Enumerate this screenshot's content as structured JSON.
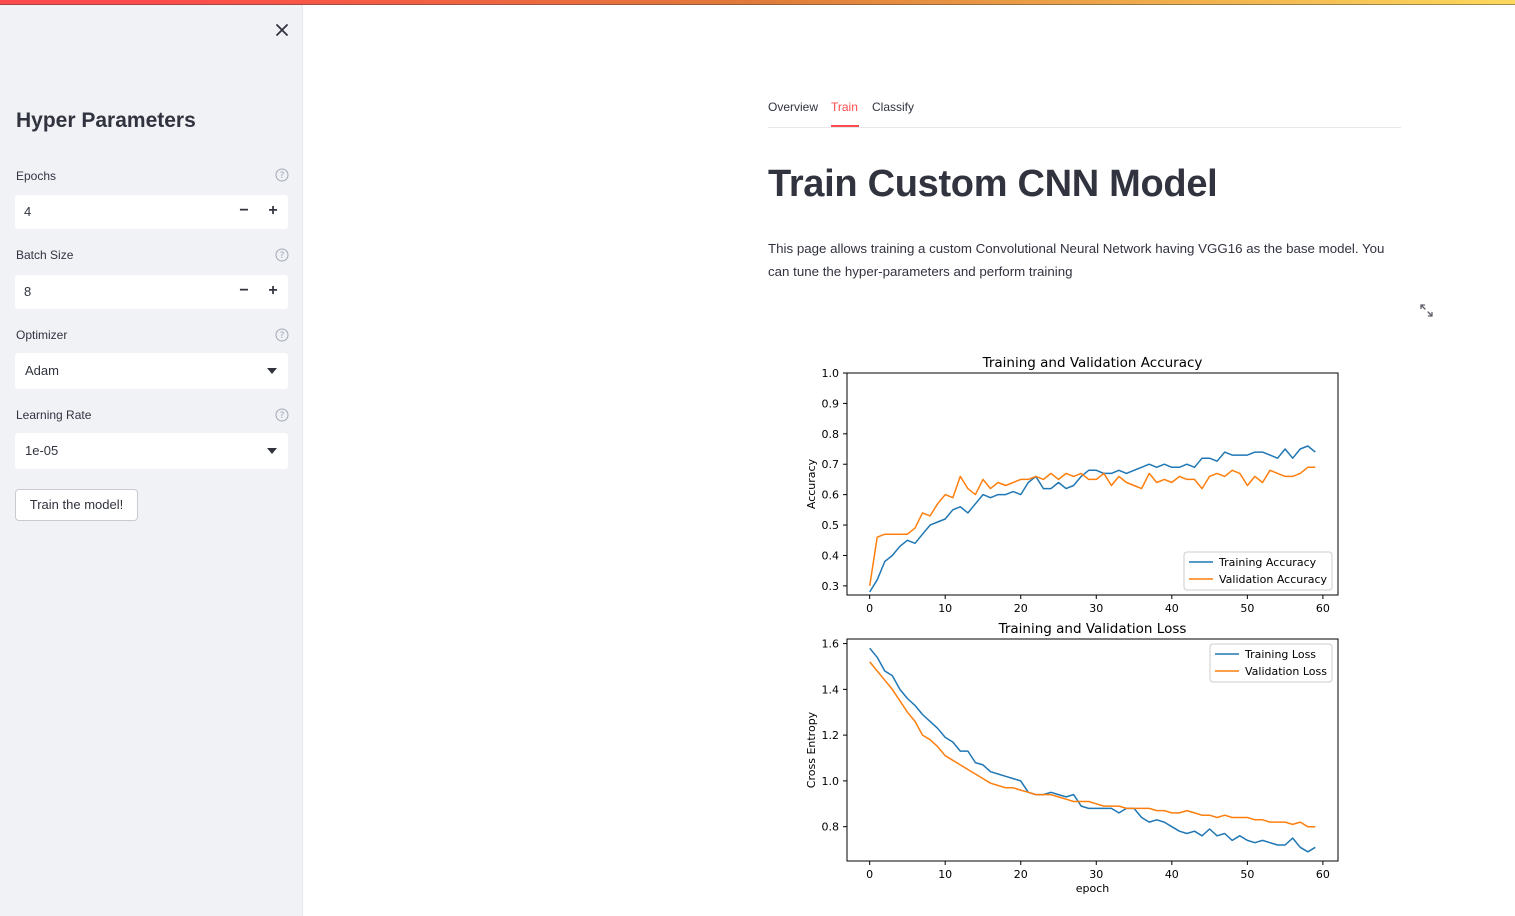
{
  "sidebar": {
    "title": "Hyper Parameters",
    "epochs": {
      "label": "Epochs",
      "value": "4",
      "minus": "−",
      "plus": "+"
    },
    "batch_size": {
      "label": "Batch Size",
      "value": "8",
      "minus": "−",
      "plus": "+"
    },
    "optimizer": {
      "label": "Optimizer",
      "value": "Adam"
    },
    "learning_rate": {
      "label": "Learning Rate",
      "value": "1e-05"
    },
    "train_button": "Train the model!"
  },
  "tabs": [
    {
      "label": "Overview",
      "active": false
    },
    {
      "label": "Train",
      "active": true
    },
    {
      "label": "Classify",
      "active": false
    }
  ],
  "main": {
    "title": "Train Custom CNN Model",
    "description": "This page allows training a custom Convolutional Neural Network having VGG16 as the base model. You can tune the hyper-parameters and perform training"
  },
  "colors": {
    "accent": "#ff4b4b",
    "series_blue": "#1f77b4",
    "series_orange": "#ff7f0e"
  },
  "chart_data": [
    {
      "type": "line",
      "title": "Training and Validation Accuracy",
      "xlabel": "",
      "ylabel": "Accuracy",
      "xlim": [
        -3,
        62
      ],
      "ylim": [
        0.27,
        1.0
      ],
      "xticks": [
        "0",
        "10",
        "20",
        "30",
        "40",
        "50",
        "60"
      ],
      "yticks": [
        "0.3",
        "0.4",
        "0.5",
        "0.6",
        "0.7",
        "0.8",
        "0.9",
        "1.0"
      ],
      "legend_position": "lower right",
      "series": [
        {
          "name": "Training Accuracy",
          "color": "#1f77b4",
          "values": [
            0.28,
            0.32,
            0.38,
            0.4,
            0.43,
            0.45,
            0.44,
            0.47,
            0.5,
            0.51,
            0.52,
            0.55,
            0.56,
            0.54,
            0.57,
            0.6,
            0.59,
            0.6,
            0.6,
            0.61,
            0.6,
            0.64,
            0.66,
            0.62,
            0.62,
            0.64,
            0.62,
            0.63,
            0.66,
            0.68,
            0.68,
            0.67,
            0.67,
            0.68,
            0.67,
            0.68,
            0.69,
            0.7,
            0.69,
            0.7,
            0.69,
            0.69,
            0.7,
            0.69,
            0.72,
            0.72,
            0.71,
            0.74,
            0.73,
            0.73,
            0.73,
            0.74,
            0.74,
            0.73,
            0.72,
            0.75,
            0.72,
            0.75,
            0.76,
            0.74
          ]
        },
        {
          "name": "Validation Accuracy",
          "color": "#ff7f0e",
          "values": [
            0.3,
            0.46,
            0.47,
            0.47,
            0.47,
            0.47,
            0.49,
            0.54,
            0.53,
            0.57,
            0.6,
            0.59,
            0.66,
            0.62,
            0.6,
            0.65,
            0.62,
            0.64,
            0.63,
            0.64,
            0.65,
            0.65,
            0.66,
            0.65,
            0.67,
            0.65,
            0.67,
            0.66,
            0.67,
            0.65,
            0.65,
            0.67,
            0.63,
            0.66,
            0.64,
            0.63,
            0.62,
            0.67,
            0.64,
            0.65,
            0.64,
            0.66,
            0.65,
            0.65,
            0.62,
            0.66,
            0.67,
            0.66,
            0.68,
            0.67,
            0.63,
            0.66,
            0.64,
            0.68,
            0.67,
            0.66,
            0.66,
            0.67,
            0.69,
            0.69
          ]
        }
      ]
    },
    {
      "type": "line",
      "title": "Training and Validation Loss",
      "xlabel": "epoch",
      "ylabel": "Cross Entropy",
      "xlim": [
        -3,
        62
      ],
      "ylim": [
        0.65,
        1.62
      ],
      "xticks": [
        "0",
        "10",
        "20",
        "30",
        "40",
        "50",
        "60"
      ],
      "yticks": [
        "0.8",
        "1.0",
        "1.2",
        "1.4",
        "1.6"
      ],
      "legend_position": "upper right",
      "series": [
        {
          "name": "Training Loss",
          "color": "#1f77b4",
          "values": [
            1.58,
            1.54,
            1.48,
            1.46,
            1.4,
            1.36,
            1.33,
            1.29,
            1.26,
            1.23,
            1.19,
            1.17,
            1.13,
            1.13,
            1.08,
            1.07,
            1.04,
            1.03,
            1.02,
            1.01,
            1.0,
            0.95,
            0.94,
            0.94,
            0.95,
            0.94,
            0.93,
            0.94,
            0.89,
            0.88,
            0.88,
            0.88,
            0.88,
            0.86,
            0.88,
            0.88,
            0.84,
            0.82,
            0.83,
            0.82,
            0.8,
            0.78,
            0.77,
            0.78,
            0.76,
            0.79,
            0.76,
            0.77,
            0.74,
            0.76,
            0.74,
            0.73,
            0.74,
            0.73,
            0.72,
            0.72,
            0.75,
            0.71,
            0.69,
            0.71
          ]
        },
        {
          "name": "Validation Loss",
          "color": "#ff7f0e",
          "values": [
            1.52,
            1.48,
            1.44,
            1.4,
            1.35,
            1.3,
            1.26,
            1.2,
            1.18,
            1.15,
            1.11,
            1.09,
            1.07,
            1.05,
            1.03,
            1.01,
            0.99,
            0.98,
            0.97,
            0.97,
            0.96,
            0.95,
            0.94,
            0.94,
            0.94,
            0.93,
            0.92,
            0.91,
            0.91,
            0.91,
            0.9,
            0.89,
            0.89,
            0.89,
            0.88,
            0.88,
            0.88,
            0.88,
            0.87,
            0.87,
            0.86,
            0.86,
            0.87,
            0.86,
            0.85,
            0.85,
            0.84,
            0.85,
            0.84,
            0.84,
            0.84,
            0.83,
            0.83,
            0.82,
            0.82,
            0.82,
            0.81,
            0.82,
            0.8,
            0.8
          ]
        }
      ]
    }
  ]
}
